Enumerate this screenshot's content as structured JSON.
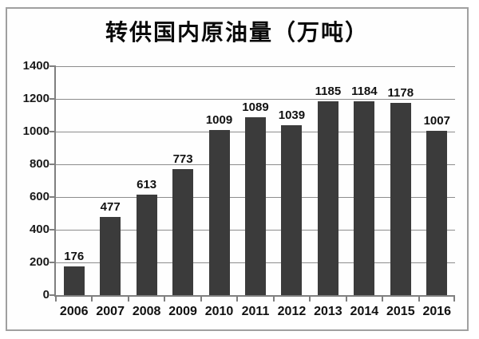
{
  "chart_data": {
    "type": "bar",
    "title": "转供国内原油量（万吨）",
    "categories": [
      "2006",
      "2007",
      "2008",
      "2009",
      "2010",
      "2011",
      "2012",
      "2013",
      "2014",
      "2015",
      "2016"
    ],
    "values": [
      176,
      477,
      613,
      773,
      1009,
      1089,
      1039,
      1185,
      1184,
      1178,
      1007
    ],
    "xlabel": "",
    "ylabel": "",
    "ylim": [
      0,
      1400
    ],
    "ytick_step": 200,
    "grid": true,
    "legend": "none",
    "bar_color": "#3b3b3b",
    "grid_color": "#8c8c8c",
    "axis_color": "#7f7f7f",
    "text_color": "#1a1a1a",
    "frame_border_color": "#a0a0a0"
  }
}
